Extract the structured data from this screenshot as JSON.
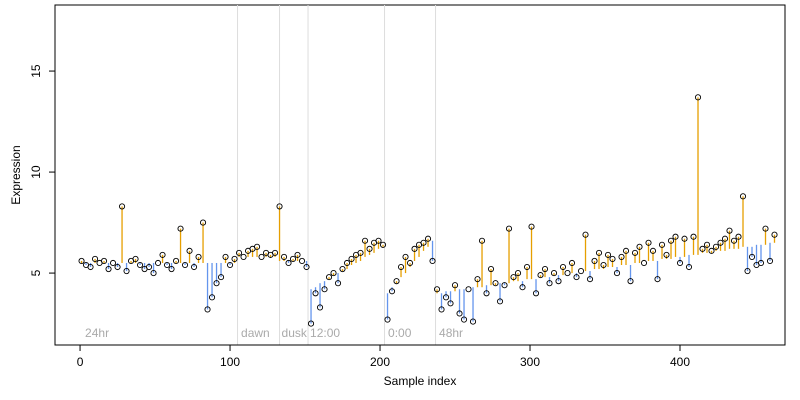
{
  "chart_data": {
    "type": "lollipop",
    "xlabel": "Sample index",
    "ylabel": "Expression",
    "xlim": [
      -16.7,
      470
    ],
    "ylim": [
      1.44,
      18.27
    ],
    "xticks": [
      0,
      100,
      200,
      300,
      400
    ],
    "yticks": [
      5,
      10,
      15
    ],
    "up_color": "#e69f00",
    "down_color": "#6495ed",
    "vline_color": "#dddddd",
    "vlines": [
      105,
      133,
      152,
      203,
      237
    ],
    "annotations": [
      {
        "label": "24hr",
        "x": 2
      },
      {
        "label": "dawn",
        "x": 106
      },
      {
        "label": "dusk",
        "x": 133
      },
      {
        "label": "12:00",
        "x": 152
      },
      {
        "label": "0:00",
        "x": 204
      },
      {
        "label": "48hr",
        "x": 238
      }
    ],
    "x": [
      1,
      4,
      7,
      10,
      13,
      16,
      19,
      22,
      25,
      28,
      31,
      34,
      37,
      40,
      43,
      46,
      49,
      52,
      55,
      58,
      61,
      64,
      67,
      70,
      73,
      76,
      79,
      82,
      85,
      88,
      91,
      94,
      97,
      100,
      103,
      106,
      109,
      112,
      115,
      118,
      121,
      124,
      127,
      130,
      133,
      136,
      139,
      142,
      145,
      148,
      151,
      154,
      157,
      160,
      163,
      166,
      169,
      172,
      175,
      178,
      181,
      184,
      187,
      190,
      193,
      196,
      199,
      202,
      205,
      208,
      211,
      214,
      217,
      220,
      223,
      226,
      229,
      232,
      235,
      238,
      241,
      244,
      247,
      250,
      253,
      256,
      259,
      262,
      265,
      268,
      271,
      274,
      277,
      280,
      283,
      286,
      289,
      292,
      295,
      298,
      301,
      304,
      307,
      310,
      313,
      316,
      319,
      322,
      325,
      328,
      331,
      334,
      337,
      340,
      343,
      346,
      349,
      352,
      355,
      358,
      361,
      364,
      367,
      370,
      373,
      376,
      379,
      382,
      385,
      388,
      391,
      394,
      397,
      400,
      403,
      406,
      409,
      412,
      415,
      418,
      421,
      424,
      427,
      430,
      433,
      436,
      439,
      442,
      445,
      448,
      451,
      454,
      457,
      460,
      463
    ],
    "values": [
      5.6,
      5.4,
      5.3,
      5.7,
      5.5,
      5.6,
      5.2,
      5.5,
      5.3,
      8.3,
      5.1,
      5.6,
      5.7,
      5.4,
      5.2,
      5.3,
      5.0,
      5.5,
      5.9,
      5.4,
      5.2,
      5.6,
      7.2,
      5.4,
      6.1,
      5.3,
      5.8,
      7.5,
      3.2,
      3.8,
      4.5,
      4.8,
      5.8,
      5.4,
      5.7,
      6.0,
      5.8,
      6.1,
      6.2,
      6.3,
      5.8,
      6.0,
      5.9,
      6.0,
      8.3,
      5.8,
      5.5,
      5.7,
      5.9,
      5.6,
      5.3,
      2.5,
      4.0,
      3.3,
      4.2,
      4.8,
      5.0,
      4.5,
      5.2,
      5.5,
      5.7,
      5.9,
      6.0,
      6.6,
      6.2,
      6.5,
      6.6,
      6.4,
      2.7,
      4.1,
      4.6,
      5.3,
      5.8,
      5.5,
      6.2,
      6.4,
      6.5,
      6.7,
      5.6,
      4.2,
      3.2,
      3.8,
      3.5,
      4.4,
      3.0,
      2.7,
      4.2,
      2.6,
      4.7,
      6.6,
      4.0,
      5.2,
      4.5,
      3.6,
      4.4,
      7.2,
      4.8,
      5.0,
      4.3,
      5.3,
      7.3,
      4.0,
      4.9,
      5.2,
      4.5,
      5.0,
      4.6,
      5.3,
      5.0,
      5.5,
      4.8,
      5.1,
      6.9,
      4.7,
      5.6,
      6.0,
      5.4,
      5.9,
      5.7,
      5.0,
      5.8,
      6.1,
      4.6,
      6.0,
      6.3,
      5.5,
      6.5,
      6.1,
      4.7,
      6.4,
      5.9,
      6.6,
      6.8,
      5.5,
      6.7,
      5.3,
      6.8,
      13.7,
      6.2,
      6.4,
      6.1,
      6.3,
      6.5,
      6.7,
      7.1,
      6.6,
      6.8,
      8.8,
      5.1,
      5.8,
      5.4,
      5.5,
      7.2,
      5.6,
      6.9
    ],
    "fit": [
      5.5,
      5.5,
      5.5,
      5.5,
      5.5,
      5.5,
      5.5,
      5.5,
      5.5,
      5.5,
      5.5,
      5.5,
      5.5,
      5.5,
      5.5,
      5.5,
      5.5,
      5.5,
      5.5,
      5.5,
      5.5,
      5.5,
      5.5,
      5.5,
      5.5,
      5.5,
      5.5,
      5.5,
      5.5,
      5.5,
      5.5,
      5.5,
      5.5,
      5.5,
      5.5,
      5.8,
      5.8,
      5.8,
      5.8,
      5.8,
      5.8,
      5.8,
      5.8,
      5.8,
      5.6,
      5.6,
      5.6,
      5.6,
      5.6,
      5.6,
      5.6,
      4.2,
      4.3,
      4.5,
      4.6,
      4.7,
      4.9,
      5.0,
      5.1,
      5.2,
      5.4,
      5.5,
      5.6,
      5.8,
      5.9,
      6.0,
      6.2,
      6.3,
      4.0,
      4.3,
      4.5,
      4.8,
      5.0,
      5.3,
      5.6,
      5.8,
      6.1,
      6.3,
      6.6,
      4.0,
      4.0,
      4.1,
      4.1,
      4.1,
      4.2,
      4.2,
      4.2,
      4.3,
      4.3,
      4.3,
      4.4,
      4.4,
      4.4,
      4.5,
      4.5,
      4.5,
      4.6,
      4.6,
      4.6,
      4.7,
      4.7,
      4.7,
      4.8,
      4.8,
      4.8,
      4.9,
      4.9,
      4.9,
      5.0,
      5.0,
      5.0,
      5.1,
      5.1,
      5.1,
      5.2,
      5.2,
      5.2,
      5.3,
      5.3,
      5.3,
      5.4,
      5.4,
      5.4,
      5.5,
      5.5,
      5.5,
      5.6,
      5.6,
      5.6,
      5.7,
      5.7,
      5.7,
      5.8,
      5.8,
      5.8,
      5.9,
      5.9,
      5.9,
      6.0,
      6.0,
      6.0,
      6.1,
      6.1,
      6.1,
      6.2,
      6.2,
      6.2,
      6.3,
      6.3,
      6.3,
      6.4,
      6.4,
      6.4,
      6.5,
      6.5
    ]
  }
}
